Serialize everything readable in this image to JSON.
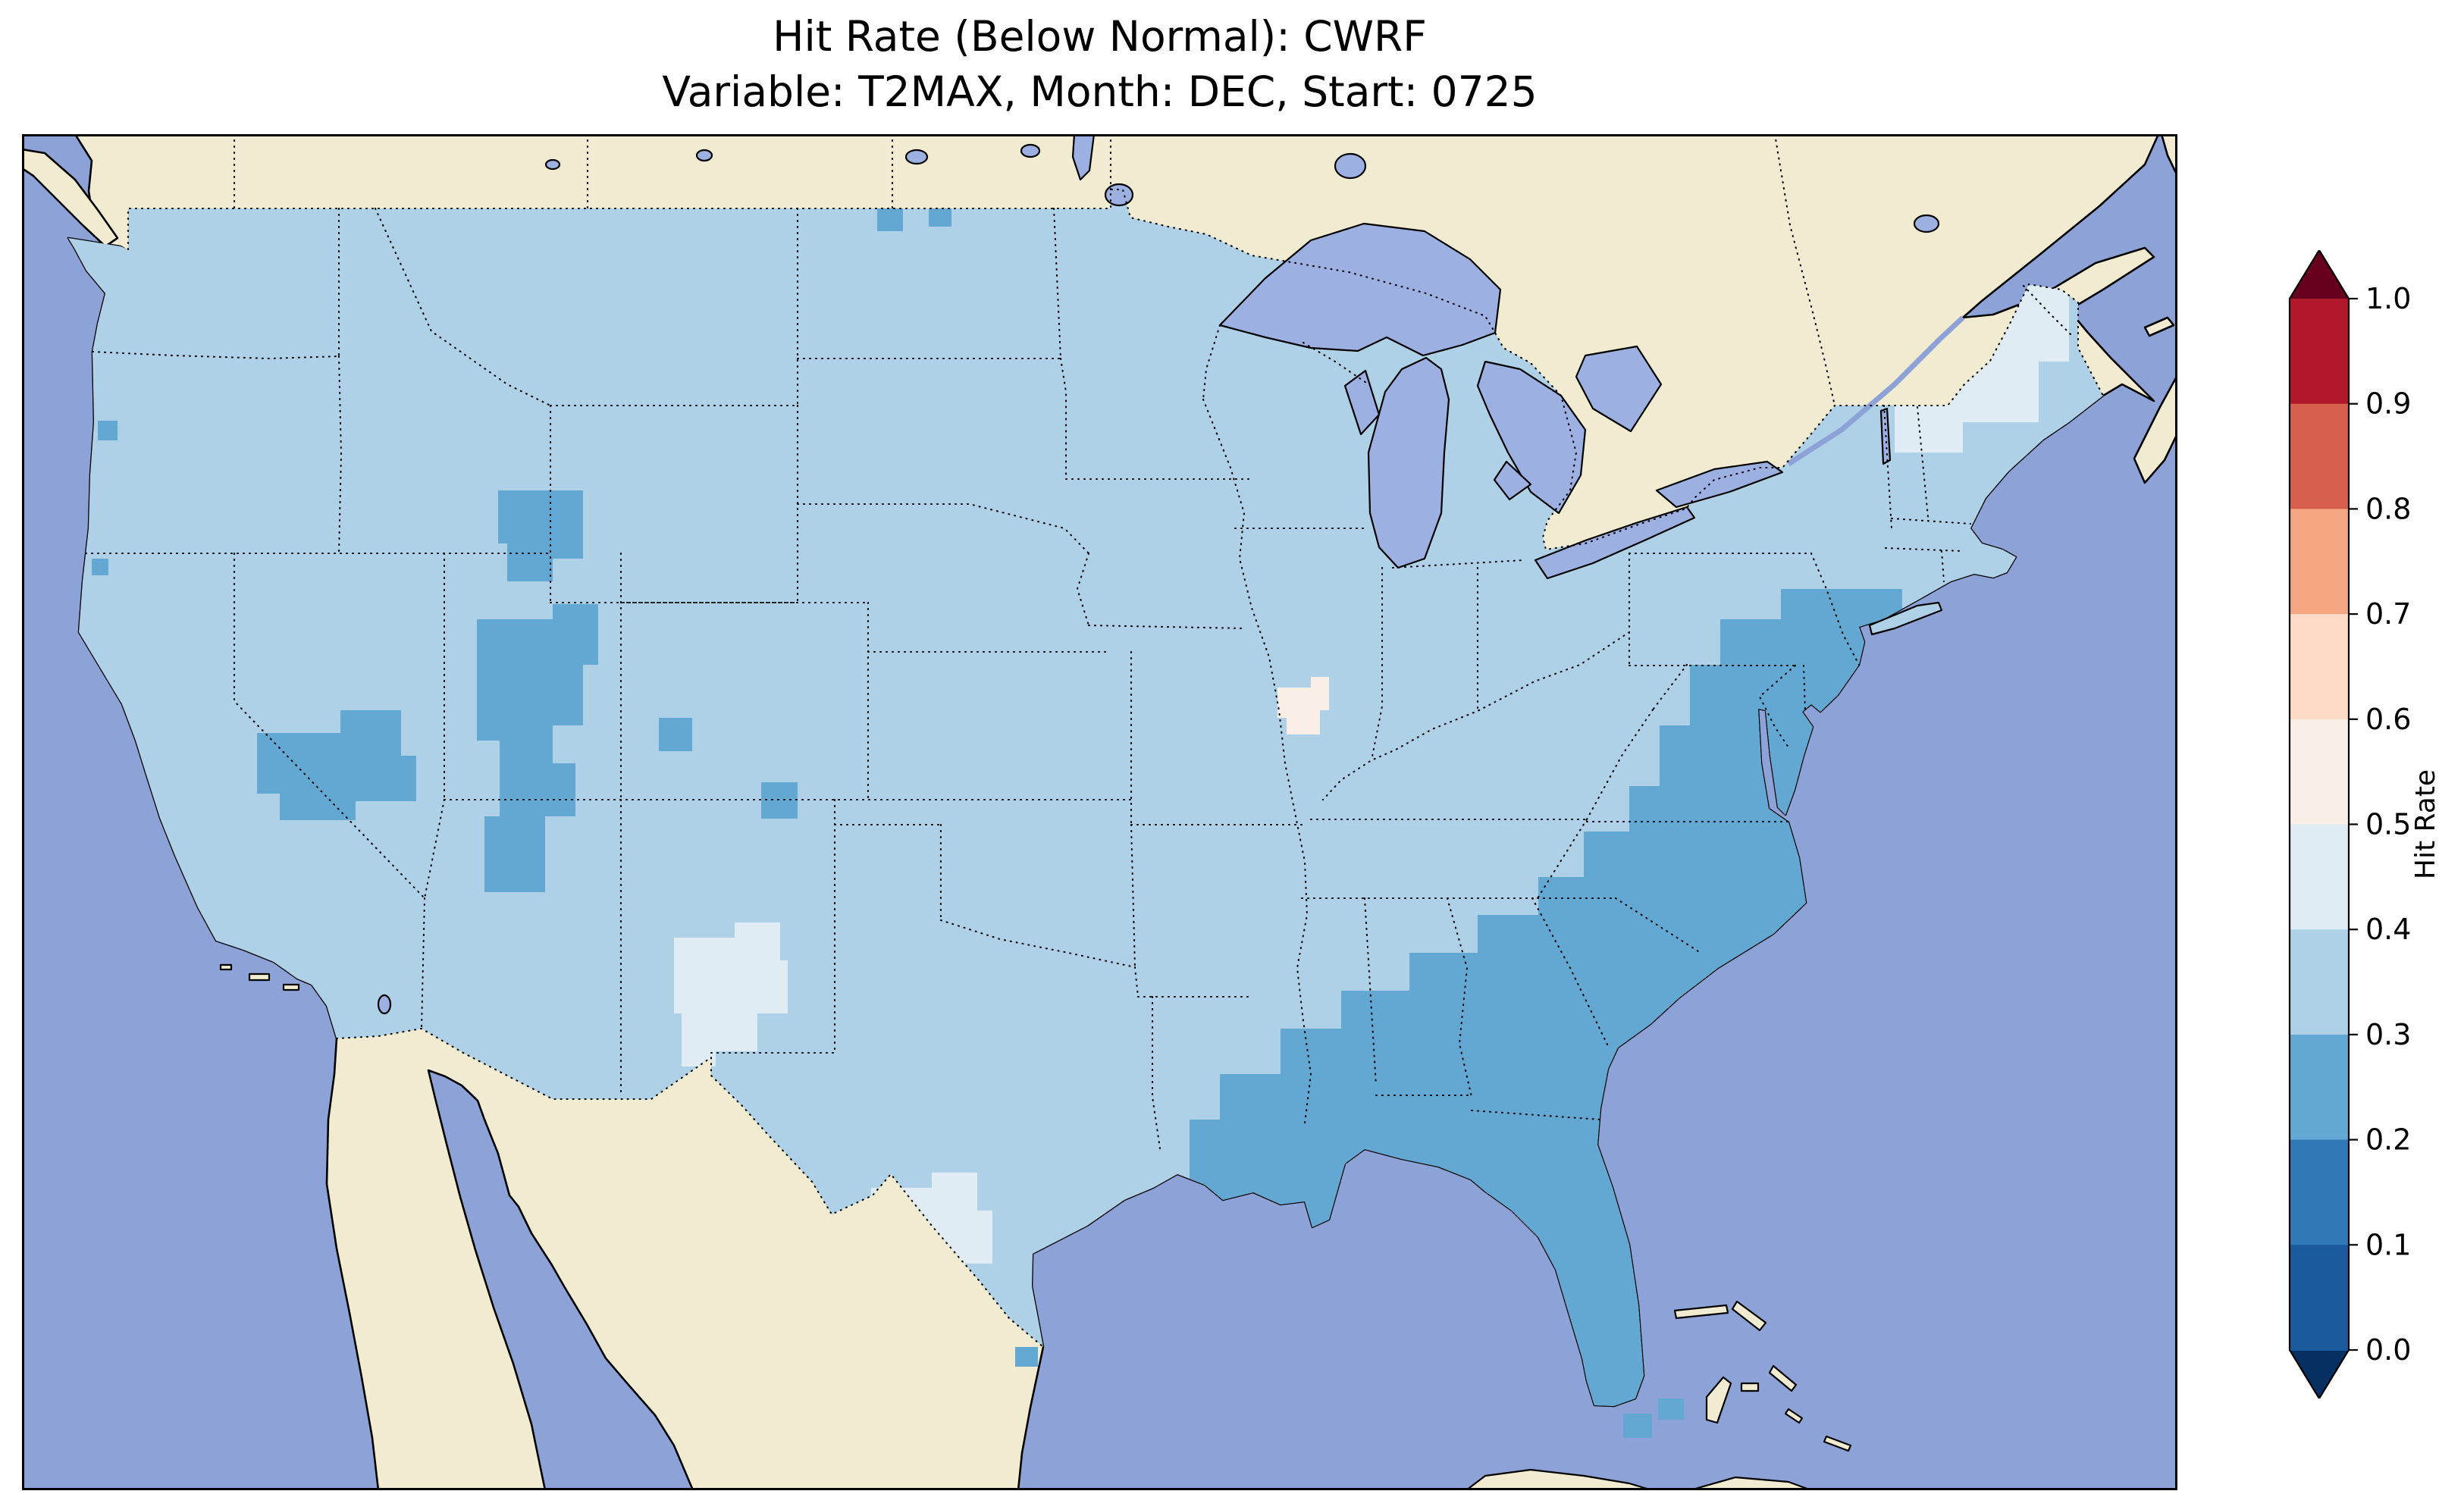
{
  "figure": {
    "title_line1": "Hit Rate (Below Normal): CWRF",
    "title_line2": "Variable: T2MAX, Month: DEC, Start: 0725"
  },
  "colors": {
    "background": "#ffffff",
    "ocean": "#8da2d6",
    "land": "#f0ebd1",
    "lake": "#9db0e2",
    "coastline": "#000000",
    "borders": "#000000",
    "frame": "#000000",
    "title_text": "#000000"
  },
  "palette": {
    "hr_0_0_to_0_1": "#1b5a9c",
    "hr_0_1_to_0_2": "#3079b6",
    "hr_0_2_to_0_3": "#62a8d2",
    "hr_0_3_to_0_4": "#aed1e7",
    "hr_0_4_to_0_5": "#dfecf4",
    "hr_0_5_to_0_6": "#f9efe7",
    "hr_0_6_to_0_7": "#fddbc7",
    "hr_0_7_to_0_8": "#f4a582",
    "hr_0_8_to_0_9": "#d6604d",
    "hr_0_9_to_1_0": "#b2182b"
  },
  "colorbar": {
    "label": "Hit Rate",
    "tick_labels": [
      "1.0",
      "0.9",
      "0.8",
      "0.7",
      "0.6",
      "0.5",
      "0.4",
      "0.3",
      "0.2",
      "0.1",
      "0.0"
    ],
    "segment_colors_top_to_bottom": [
      "#b2182b",
      "#d6604d",
      "#f4a582",
      "#fddbc7",
      "#f9efe7",
      "#dfecf4",
      "#aed1e7",
      "#62a8d2",
      "#3079b6",
      "#1b5a9c"
    ],
    "arrow_top_color": "#67001f",
    "arrow_bottom_color": "#053061"
  },
  "chart_data": {
    "type": "heatmap",
    "subtype": "geographic choropleth (gridded hit-rate map over CONUS)",
    "title": "Hit Rate (Below Normal): CWRF",
    "subtitle": "Variable: T2MAX, Month: DEC, Start: 0725",
    "model": "CWRF",
    "metric": "Hit Rate (Below Normal)",
    "variable": "T2MAX",
    "month": "DEC",
    "start": "0725",
    "map_region": "Contiguous United States with surrounding Canada, Mexico, Gulf of Mexico, Bahamas",
    "colorbar": {
      "label": "Hit Rate",
      "range": [
        0.0,
        1.0
      ],
      "tick_step": 0.1,
      "ticks": [
        1.0,
        0.9,
        0.8,
        0.7,
        0.6,
        0.5,
        0.4,
        0.3,
        0.2,
        0.1,
        0.0
      ],
      "colormap": "RdBu reversed, discrete 0.1 bins, extended arrows both ends",
      "legend_position": "right vertical"
    },
    "regions": [
      {
        "area": "Most of CONUS (dominant background value)",
        "hit_rate_bin": "0.3-0.4"
      },
      {
        "area": "Southeast: Florida, south Georgia, south Alabama, south Mississippi, coastal South/North Carolina, eastern Virginia, Delmarva and New Jersey",
        "hit_rate_bin": "0.2-0.3"
      },
      {
        "area": "Utah / Four Corners patches and southern Nevada - northwest Arizona blob",
        "hit_rate_bin": "0.2-0.3"
      },
      {
        "area": "Small spots in southern Colorado / northern New Mexico and on northern California coast",
        "hit_rate_bin": "0.2-0.3"
      },
      {
        "area": "Eastern New Mexico / Texas panhandle edge patch",
        "hit_rate_bin": "0.4-0.5"
      },
      {
        "area": "South Texas patch",
        "hit_rate_bin": "0.4-0.5"
      },
      {
        "area": "Northern New England (Maine area)",
        "hit_rate_bin": "0.4-0.5"
      },
      {
        "area": "Small central Illinois patch",
        "hit_rate_bin": "0.5-0.6"
      },
      {
        "area": "Stray grid cells near the Florida Keys and the US-Canada border in North Dakota",
        "hit_rate_bin": "0.2-0.3"
      }
    ]
  }
}
